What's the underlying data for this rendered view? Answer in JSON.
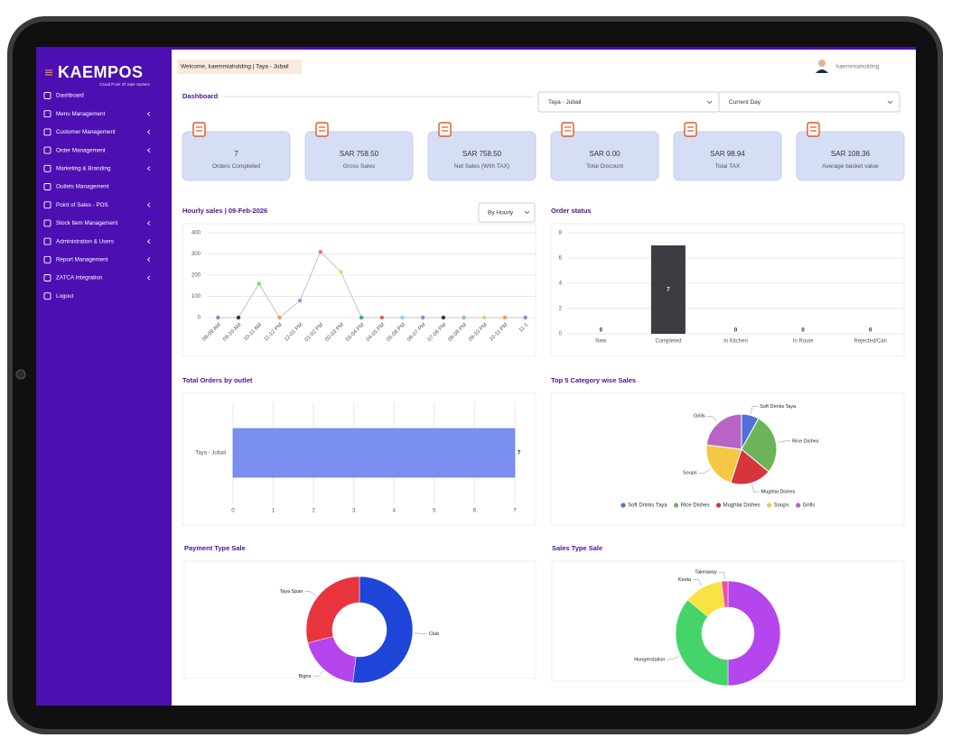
{
  "brand": {
    "name": "KAEMPOS",
    "tagline": "Cloud Point Of Sale System"
  },
  "sidebar": [
    {
      "label": "Dashboard",
      "submenu": false
    },
    {
      "label": "Menu Management",
      "submenu": true
    },
    {
      "label": "Customer Management",
      "submenu": true
    },
    {
      "label": "Order Management",
      "submenu": true
    },
    {
      "label": "Marketing & Branding",
      "submenu": true
    },
    {
      "label": "Outlets Management",
      "submenu": false
    },
    {
      "label": "Point of Sales - POS",
      "submenu": true
    },
    {
      "label": "Stock Item Management",
      "submenu": true
    },
    {
      "label": "Administration & Users",
      "submenu": true
    },
    {
      "label": "Report Management",
      "submenu": true
    },
    {
      "label": "ZATCA Integration",
      "submenu": true
    },
    {
      "label": "Logout",
      "submenu": false
    }
  ],
  "header": {
    "welcome": "Welcome, kaemmiaholding | Taya - Jubail",
    "user": "kaemmiaholding"
  },
  "dashboard": {
    "title": "Dashboard",
    "filters": [
      "Taya - Jubail",
      "Current Day"
    ]
  },
  "kpis": [
    {
      "value": "7",
      "label": "Orders Completed"
    },
    {
      "value": "SAR 758.50",
      "label": "Gross Sales"
    },
    {
      "value": "SAR 758.50",
      "label": "Net Sales (With TAX)"
    },
    {
      "value": "SAR 0.00",
      "label": "Total Discount"
    },
    {
      "value": "SAR 98.94",
      "label": "Total TAX"
    },
    {
      "value": "SAR 108.36",
      "label": "Average basket value"
    }
  ],
  "chart_data": [
    {
      "type": "line",
      "title": "Hourly sales | 09-Feb-2026",
      "control": "By Hourly",
      "categories": [
        "08-09 AM",
        "09-10 AM",
        "10-11 AM",
        "11-12 PM",
        "12-01 PM",
        "01-02 PM",
        "02-03 PM",
        "03-04 PM",
        "04-05 PM",
        "05-06 PM",
        "06-07 PM",
        "07-08 PM",
        "08-09 PM",
        "09-10 PM",
        "10-11 PM",
        "11-1"
      ],
      "values": [
        0,
        0,
        160,
        0,
        80,
        310,
        215,
        0,
        0,
        0,
        0,
        0,
        0,
        0,
        0,
        0
      ],
      "color": "#c4c4c4",
      "point_colors": [
        "#9b7fd4",
        "#333333",
        "#7ed37e",
        "#f0a050",
        "#b58bd8",
        "#f06aa0",
        "#e8d850",
        "#30a8a0",
        "#e85a5a",
        "#8ad0f0",
        "#9b7fd4",
        "#333333",
        "#7ed37e",
        "#b8e87e",
        "#f0a050",
        "#9b7fd4"
      ],
      "ylim": [
        0,
        400
      ],
      "yticks": [
        0,
        100,
        200,
        300,
        400
      ],
      "grid": true
    },
    {
      "type": "bar",
      "title": "Order status",
      "categories": [
        "New",
        "Completed",
        "In Kitchen",
        "In Route",
        "Rejected/Can"
      ],
      "values": [
        0,
        7,
        0,
        0,
        0
      ],
      "color": "#3e3b42",
      "ylim": [
        0,
        8
      ],
      "yticks": [
        0,
        2,
        4,
        6,
        8
      ],
      "grid": true,
      "horizontal": false
    },
    {
      "type": "bar",
      "title": "Total Orders by outlet",
      "categories": [
        "Taya - Jubail"
      ],
      "values": [
        7
      ],
      "color": "#7b8ff0",
      "xlim": [
        0,
        7
      ],
      "xticks": [
        0,
        1,
        2,
        3,
        4,
        5,
        6,
        7
      ],
      "grid": true,
      "horizontal": true
    },
    {
      "type": "pie",
      "title": "Top 5 Category wise Sales",
      "categories": [
        "Soft Drinks Taya",
        "Rice Dishes",
        "Mughlai Dishes",
        "Soups",
        "Grills"
      ],
      "values": [
        8,
        28,
        19,
        22,
        23
      ],
      "colors": [
        "#4f6fd9",
        "#6cb45a",
        "#d8343c",
        "#f6c744",
        "#b665c6"
      ],
      "legend": "bottom"
    },
    {
      "type": "donut",
      "title": "Payment Type Sale",
      "categories": [
        "Club",
        "Bigns",
        "Taya Span"
      ],
      "values": [
        52,
        19,
        29
      ],
      "colors": [
        "#1f45d8",
        "#b545ec",
        "#e8343c"
      ]
    },
    {
      "type": "donut",
      "title": "Sales Type Sale",
      "categories": [
        null,
        "Hungerstation",
        "Keeta",
        "Takeaway"
      ],
      "values": [
        50,
        36,
        12,
        2
      ],
      "colors": [
        "#b545ec",
        "#44d46a",
        "#f7e343",
        "#ef4fa6"
      ]
    }
  ]
}
